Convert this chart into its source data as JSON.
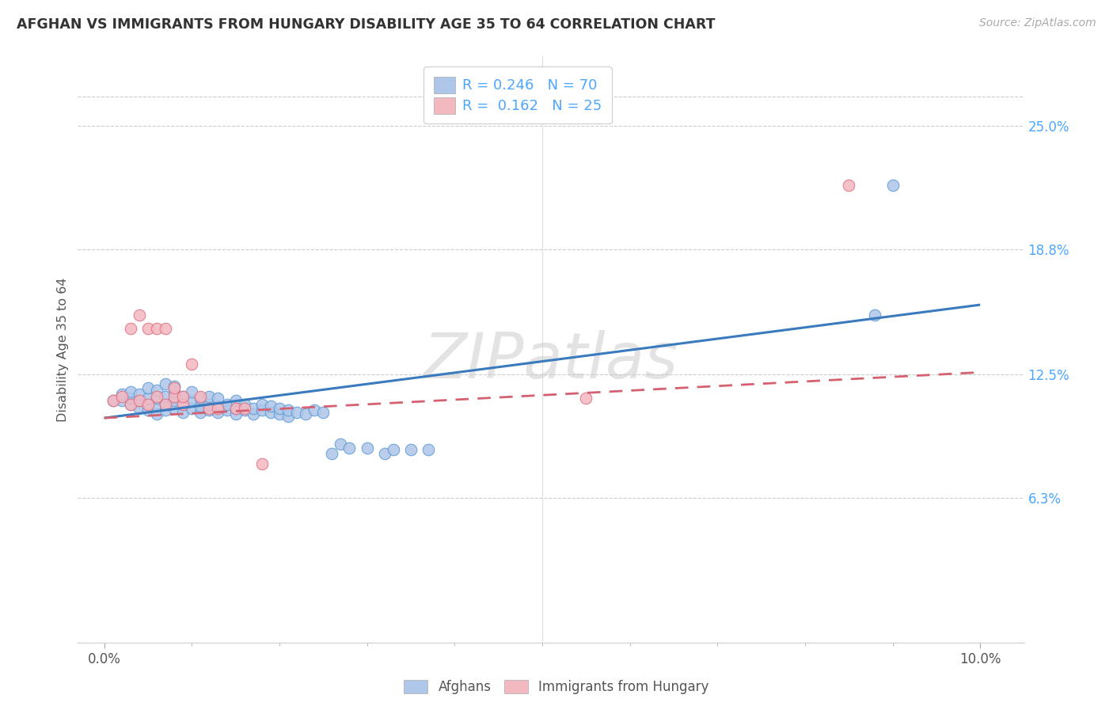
{
  "title": "AFGHAN VS IMMIGRANTS FROM HUNGARY DISABILITY AGE 35 TO 64 CORRELATION CHART",
  "source": "Source: ZipAtlas.com",
  "ylabel": "Disability Age 35 to 64",
  "ytick_labels": [
    "25.0%",
    "18.8%",
    "12.5%",
    "6.3%"
  ],
  "ytick_values": [
    0.25,
    0.188,
    0.125,
    0.063
  ],
  "xtick_labels": [
    "0.0%",
    "10.0%"
  ],
  "xtick_values": [
    0.0,
    0.1
  ],
  "xlim": [
    -0.003,
    0.105
  ],
  "ylim": [
    -0.01,
    0.285
  ],
  "legend_r_afghan": "0.246",
  "legend_n_afghan": "70",
  "legend_r_hungary": "0.162",
  "legend_n_hungary": "25",
  "afghan_fill": "#aec6e8",
  "afghan_edge": "#5b9bd5",
  "afghan_line": "#3a7bbf",
  "hungary_fill": "#f4b8c1",
  "hungary_edge": "#e07080",
  "hungary_line": "#d46070",
  "bg": "#ffffff",
  "grid_color": "#cccccc",
  "tick_color": "#4da6ff",
  "title_color": "#333333",
  "source_color": "#aaaaaa",
  "afghan_x": [
    0.001,
    0.002,
    0.002,
    0.003,
    0.003,
    0.003,
    0.004,
    0.004,
    0.004,
    0.005,
    0.005,
    0.005,
    0.006,
    0.006,
    0.006,
    0.006,
    0.007,
    0.007,
    0.007,
    0.007,
    0.008,
    0.008,
    0.008,
    0.008,
    0.009,
    0.009,
    0.009,
    0.01,
    0.01,
    0.01,
    0.011,
    0.011,
    0.011,
    0.012,
    0.012,
    0.012,
    0.013,
    0.013,
    0.013,
    0.014,
    0.014,
    0.015,
    0.015,
    0.015,
    0.016,
    0.016,
    0.017,
    0.017,
    0.018,
    0.018,
    0.019,
    0.019,
    0.02,
    0.02,
    0.021,
    0.021,
    0.022,
    0.023,
    0.024,
    0.025,
    0.026,
    0.027,
    0.028,
    0.03,
    0.032,
    0.033,
    0.035,
    0.037,
    0.088,
    0.09
  ],
  "afghan_y": [
    0.112,
    0.112,
    0.115,
    0.11,
    0.113,
    0.116,
    0.108,
    0.112,
    0.115,
    0.107,
    0.113,
    0.118,
    0.105,
    0.109,
    0.113,
    0.117,
    0.107,
    0.11,
    0.114,
    0.12,
    0.108,
    0.112,
    0.116,
    0.119,
    0.106,
    0.11,
    0.114,
    0.108,
    0.112,
    0.116,
    0.106,
    0.109,
    0.113,
    0.107,
    0.11,
    0.114,
    0.106,
    0.109,
    0.113,
    0.107,
    0.11,
    0.105,
    0.108,
    0.112,
    0.107,
    0.11,
    0.105,
    0.108,
    0.107,
    0.11,
    0.106,
    0.109,
    0.105,
    0.108,
    0.104,
    0.107,
    0.106,
    0.105,
    0.107,
    0.106,
    0.085,
    0.09,
    0.088,
    0.088,
    0.085,
    0.087,
    0.087,
    0.087,
    0.155,
    0.22
  ],
  "hungary_x": [
    0.001,
    0.002,
    0.003,
    0.003,
    0.004,
    0.004,
    0.005,
    0.005,
    0.006,
    0.006,
    0.007,
    0.007,
    0.008,
    0.008,
    0.009,
    0.009,
    0.01,
    0.011,
    0.012,
    0.013,
    0.015,
    0.016,
    0.018,
    0.055,
    0.085
  ],
  "hungary_y": [
    0.112,
    0.114,
    0.11,
    0.148,
    0.112,
    0.155,
    0.11,
    0.148,
    0.114,
    0.148,
    0.11,
    0.148,
    0.114,
    0.118,
    0.11,
    0.114,
    0.13,
    0.114,
    0.108,
    0.108,
    0.108,
    0.108,
    0.08,
    0.113,
    0.22
  ]
}
